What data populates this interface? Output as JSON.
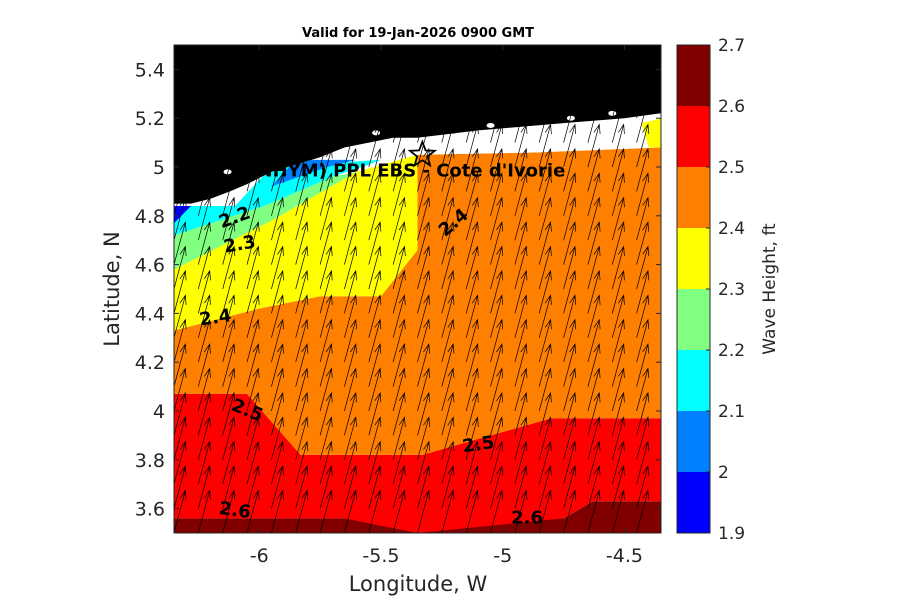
{
  "chart_data": {
    "type": "heatmap",
    "title": "Valid for 19-Jan-2026 0900 GMT",
    "xlabel": "Longitude, W",
    "ylabel": "Latitude, N",
    "xlim": [
      -6.35,
      -4.35
    ],
    "ylim": [
      3.5,
      5.5
    ],
    "xticks": [
      -6,
      -5.5,
      -5,
      -4.5
    ],
    "xtick_labels": [
      "-6",
      "-5.5",
      "-5",
      "-4.5"
    ],
    "yticks": [
      3.6,
      3.8,
      4.0,
      4.2,
      4.4,
      4.6,
      4.8,
      5.0,
      5.2,
      5.4
    ],
    "ytick_labels": [
      "3.6",
      "3.8",
      "4",
      "4.2",
      "4.4",
      "4.6",
      "4.8",
      "5",
      "5.2",
      "5.4"
    ],
    "colorbar": {
      "label": "Wave Height, ft",
      "levels": [
        1.9,
        2.0,
        2.1,
        2.2,
        2.3,
        2.4,
        2.5,
        2.6,
        2.7
      ],
      "tick_labels": [
        "1.9",
        "2",
        "2.1",
        "2.2",
        "2.3",
        "2.4",
        "2.5",
        "2.6",
        "2.7"
      ],
      "colors": [
        "#0000ff",
        "#0080ff",
        "#00ffff",
        "#80ff80",
        "#ffff00",
        "#ff8000",
        "#ff0000",
        "#800000"
      ]
    },
    "fill_colors": {
      "land": "#000000",
      "coast_strip": "#ffffff",
      "band_2_6": "#800000",
      "band_2_5": "#ff0000",
      "band_2_4": "#ff8000",
      "band_2_3": "#ffff00",
      "band_2_2": "#80ff80",
      "band_2_1": "#00ffff",
      "band_2_0": "#0080ff",
      "band_1_9": "#0000ff"
    },
    "bands": [
      {
        "name": "band_2_6",
        "points": [
          [
            -6.35,
            3.5
          ],
          [
            -4.35,
            3.5
          ],
          [
            -4.35,
            3.63
          ],
          [
            -4.63,
            3.63
          ],
          [
            -4.75,
            3.56
          ],
          [
            -5.35,
            3.56
          ],
          [
            -5.65,
            3.56
          ],
          [
            -6.35,
            3.56
          ]
        ]
      },
      {
        "name": "band_2_5",
        "points": [
          [
            -6.35,
            3.56
          ],
          [
            -5.65,
            3.56
          ],
          [
            -5.35,
            3.5
          ],
          [
            -4.75,
            3.56
          ],
          [
            -4.63,
            3.63
          ],
          [
            -4.35,
            3.63
          ],
          [
            -4.35,
            3.97
          ],
          [
            -4.8,
            3.97
          ],
          [
            -5.05,
            3.9
          ],
          [
            -5.33,
            3.82
          ],
          [
            -5.83,
            3.82
          ],
          [
            -6.05,
            4.07
          ],
          [
            -6.35,
            4.07
          ]
        ]
      },
      {
        "name": "band_2_4",
        "points": [
          [
            -6.35,
            4.07
          ],
          [
            -6.05,
            4.07
          ],
          [
            -5.83,
            3.82
          ],
          [
            -5.33,
            3.82
          ],
          [
            -5.05,
            3.9
          ],
          [
            -4.8,
            3.97
          ],
          [
            -4.35,
            3.97
          ],
          [
            -4.35,
            5.08
          ],
          [
            -4.85,
            5.06
          ],
          [
            -5.35,
            5.05
          ],
          [
            -5.35,
            4.66
          ],
          [
            -5.5,
            4.47
          ],
          [
            -5.75,
            4.47
          ],
          [
            -6.0,
            4.42
          ],
          [
            -6.35,
            4.33
          ]
        ]
      },
      {
        "name": "band_2_3",
        "points": [
          [
            -6.35,
            4.33
          ],
          [
            -6.0,
            4.42
          ],
          [
            -5.75,
            4.47
          ],
          [
            -5.5,
            4.47
          ],
          [
            -5.35,
            4.66
          ],
          [
            -5.35,
            5.05
          ],
          [
            -5.6,
            4.98
          ],
          [
            -5.95,
            4.78
          ],
          [
            -6.35,
            4.58
          ]
        ]
      },
      {
        "name": "band_2_3",
        "points": [
          [
            -4.43,
            5.18
          ],
          [
            -4.35,
            5.2
          ],
          [
            -4.35,
            5.08
          ],
          [
            -4.4,
            5.08
          ]
        ]
      },
      {
        "name": "band_2_2",
        "points": [
          [
            -6.35,
            4.58
          ],
          [
            -5.95,
            4.78
          ],
          [
            -5.6,
            4.98
          ],
          [
            -5.7,
            4.96
          ],
          [
            -5.98,
            4.84
          ],
          [
            -6.35,
            4.72
          ]
        ]
      },
      {
        "name": "band_2_1",
        "points": [
          [
            -6.35,
            4.72
          ],
          [
            -5.98,
            4.84
          ],
          [
            -5.7,
            4.96
          ],
          [
            -5.55,
            5.01
          ],
          [
            -5.5,
            5.03
          ],
          [
            -5.95,
            5.0
          ],
          [
            -6.1,
            4.84
          ],
          [
            -6.35,
            4.84
          ]
        ]
      },
      {
        "name": "band_2_0",
        "points": [
          [
            -5.95,
            4.92
          ],
          [
            -5.72,
            5.0
          ],
          [
            -5.6,
            5.03
          ],
          [
            -5.85,
            5.03
          ]
        ]
      },
      {
        "name": "band_1_9",
        "points": [
          [
            -6.35,
            4.77
          ],
          [
            -6.28,
            4.84
          ],
          [
            -6.35,
            4.84
          ]
        ]
      }
    ],
    "land_polygon": [
      [
        -6.35,
        5.5
      ],
      [
        -4.35,
        5.5
      ],
      [
        -4.35,
        5.22
      ],
      [
        -4.5,
        5.2
      ],
      [
        -4.75,
        5.18
      ],
      [
        -5.1,
        5.15
      ],
      [
        -5.35,
        5.12
      ],
      [
        -5.45,
        5.12
      ],
      [
        -5.55,
        5.1
      ],
      [
        -5.65,
        5.08
      ],
      [
        -5.75,
        5.04
      ],
      [
        -5.85,
        5.01
      ],
      [
        -5.95,
        4.98
      ],
      [
        -6.05,
        4.93
      ],
      [
        -6.12,
        4.9
      ],
      [
        -6.2,
        4.87
      ],
      [
        -6.28,
        4.85
      ],
      [
        -6.35,
        4.85
      ]
    ],
    "coast_strip_polygon": [
      [
        -6.35,
        4.85
      ],
      [
        -6.28,
        4.85
      ],
      [
        -6.2,
        4.87
      ],
      [
        -6.12,
        4.9
      ],
      [
        -6.05,
        4.93
      ],
      [
        -5.95,
        4.98
      ],
      [
        -5.85,
        5.01
      ],
      [
        -5.75,
        5.04
      ],
      [
        -5.65,
        5.08
      ],
      [
        -5.55,
        5.1
      ],
      [
        -5.45,
        5.12
      ],
      [
        -5.35,
        5.12
      ],
      [
        -5.1,
        5.15
      ],
      [
        -4.75,
        5.18
      ],
      [
        -4.5,
        5.2
      ],
      [
        -4.35,
        5.22
      ],
      [
        -4.35,
        5.2
      ],
      [
        -4.43,
        5.18
      ],
      [
        -4.6,
        5.1
      ],
      [
        -4.85,
        5.06
      ],
      [
        -5.35,
        5.05
      ],
      [
        -5.6,
        5.03
      ],
      [
        -5.85,
        5.03
      ],
      [
        -5.95,
        5.0
      ],
      [
        -6.1,
        4.84
      ],
      [
        -6.35,
        4.84
      ]
    ],
    "contour_labels": [
      {
        "text": "2.2",
        "lon": -6.1,
        "lat": 4.79,
        "angle": -20
      },
      {
        "text": "2.3",
        "lon": -6.08,
        "lat": 4.68,
        "angle": -10
      },
      {
        "text": "2.4",
        "lon": -6.18,
        "lat": 4.38,
        "angle": -8
      },
      {
        "text": "2.4",
        "lon": -5.2,
        "lat": 4.77,
        "angle": -40
      },
      {
        "text": "2.5",
        "lon": -6.05,
        "lat": 4.0,
        "angle": 22
      },
      {
        "text": "2.5",
        "lon": -5.1,
        "lat": 3.86,
        "angle": -8
      },
      {
        "text": "2.6",
        "lon": -6.1,
        "lat": 3.59,
        "angle": 8
      },
      {
        "text": "2.6",
        "lon": -4.9,
        "lat": 3.56,
        "angle": 0
      }
    ],
    "site": {
      "label": "(ONHYM) PPL EBS - Cote d'Ivorie",
      "marker": "star-icon",
      "lon": -5.33,
      "lat": 5.05,
      "label_lon": -6.35,
      "label_lat": 4.99
    },
    "wave_direction": {
      "from_deg": 195,
      "lon_start": -6.35,
      "lon_end": -4.4,
      "lon_step": 0.1,
      "lat_start": 3.5,
      "lat_end": 5.2,
      "lat_step": 0.1
    }
  }
}
